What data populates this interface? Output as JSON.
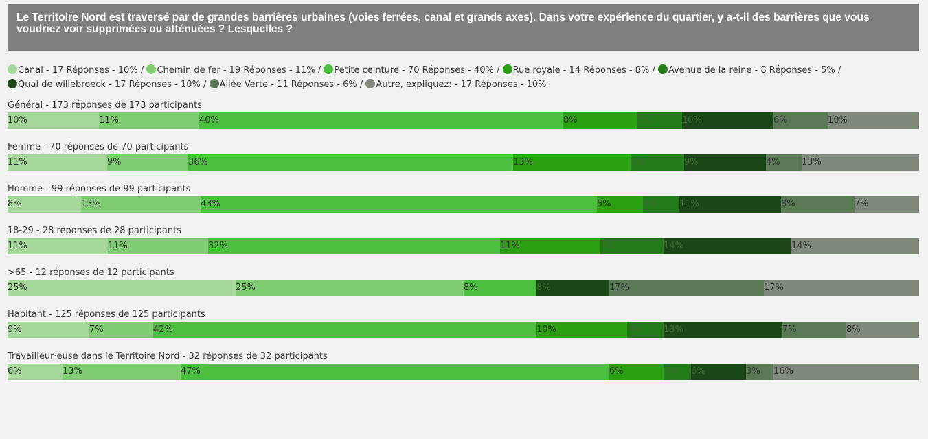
{
  "question": "Le Territoire Nord est traversé par de grandes barrières urbaines (voies ferrées, canal et grands axes). Dans votre expérience du quartier, y a-t-il des barrières que vous voudriez voir supprimées ou atténuées ? Lesquelles ?",
  "colors": {
    "background": "#f2f2f2",
    "header_background": "#7f7f7f",
    "text": "#3a3a3a",
    "label_light": "#333333",
    "label_dark": "#3d6b30"
  },
  "legend": [
    {
      "text": "Canal - 17 Réponses - 10% /",
      "color": "#a6d89c"
    },
    {
      "text": "Chemin de fer - 19 Réponses - 11% /",
      "color": "#7fcc72"
    },
    {
      "text": "Petite ceinture - 70 Réponses - 40% /",
      "color": "#4cbf40"
    },
    {
      "text": "Rue royale - 14 Réponses - 8% /",
      "color": "#2ba012"
    },
    {
      "text": "Avenue de la reine - 8 Réponses - 5% /",
      "color": "#227a18"
    },
    {
      "text": "Quai de willebroeck - 17 Réponses - 10% /",
      "color": "#1b4618"
    },
    {
      "text": "Allée Verte - 11 Réponses - 6% /",
      "color": "#5a7a56"
    },
    {
      "text": "Autre, expliquez: - 17 Réponses - 10%",
      "color": "#7f8a7c"
    }
  ],
  "chart_data": {
    "type": "bar",
    "orientation": "horizontal",
    "stacked": true,
    "normalized": true,
    "series": [
      {
        "name": "Canal",
        "color": "#a6d89c"
      },
      {
        "name": "Chemin de fer",
        "color": "#7fcc72"
      },
      {
        "name": "Petite ceinture",
        "color": "#4cbf40"
      },
      {
        "name": "Rue royale",
        "color": "#2ba012"
      },
      {
        "name": "Avenue de la reine",
        "color": "#227a18"
      },
      {
        "name": "Quai de willebroeck",
        "color": "#1b4618"
      },
      {
        "name": "Allée Verte",
        "color": "#5a7a56"
      },
      {
        "name": "Autre, expliquez:",
        "color": "#7f8a7c"
      }
    ],
    "groups": [
      {
        "title": "Général - 173 réponses de 173 participants",
        "values": [
          10,
          11,
          40,
          8,
          5,
          10,
          6,
          10
        ],
        "labels": [
          "10%",
          "11%",
          "40%",
          "8%",
          "5%",
          "10%",
          "6%",
          "10%"
        ]
      },
      {
        "title": "Femme - 70 réponses de 70 participants",
        "values": [
          11,
          9,
          36,
          13,
          6,
          9,
          4,
          13
        ],
        "labels": [
          "11%",
          "9%",
          "36%",
          "13%",
          "6%",
          "9%",
          "4%",
          "13%"
        ]
      },
      {
        "title": "Homme - 99 réponses de 99 participants",
        "values": [
          8,
          13,
          43,
          5,
          4,
          11,
          8,
          7
        ],
        "labels": [
          "8%",
          "13%",
          "43%",
          "5%",
          "4%",
          "11%",
          "8%",
          "7%"
        ]
      },
      {
        "title": "18-29 - 28 réponses de 28 participants",
        "values": [
          11,
          11,
          32,
          11,
          7,
          14,
          0,
          14
        ],
        "labels": [
          "11%",
          "11%",
          "32%",
          "11%",
          "7%",
          "14%",
          "",
          "14%"
        ]
      },
      {
        "title": ">65 - 12 réponses de 12 participants",
        "values": [
          25,
          25,
          8,
          0,
          0,
          8,
          17,
          17
        ],
        "labels": [
          "25%",
          "25%",
          "8%",
          "",
          "",
          "8%",
          "17%",
          "17%"
        ]
      },
      {
        "title": "Habitant - 125 réponses de 125 participants",
        "values": [
          9,
          7,
          42,
          10,
          4,
          13,
          7,
          8
        ],
        "labels": [
          "9%",
          "7%",
          "42%",
          "10%",
          "4%",
          "13%",
          "7%",
          "8%"
        ]
      },
      {
        "title": "Travailleur·euse dans le Territoire Nord - 32 réponses de 32 participants",
        "values": [
          6,
          13,
          47,
          6,
          3,
          6,
          3,
          16
        ],
        "labels": [
          "6%",
          "13%",
          "47%",
          "6%",
          "3%",
          "6%",
          "3%",
          "16%"
        ]
      }
    ]
  }
}
